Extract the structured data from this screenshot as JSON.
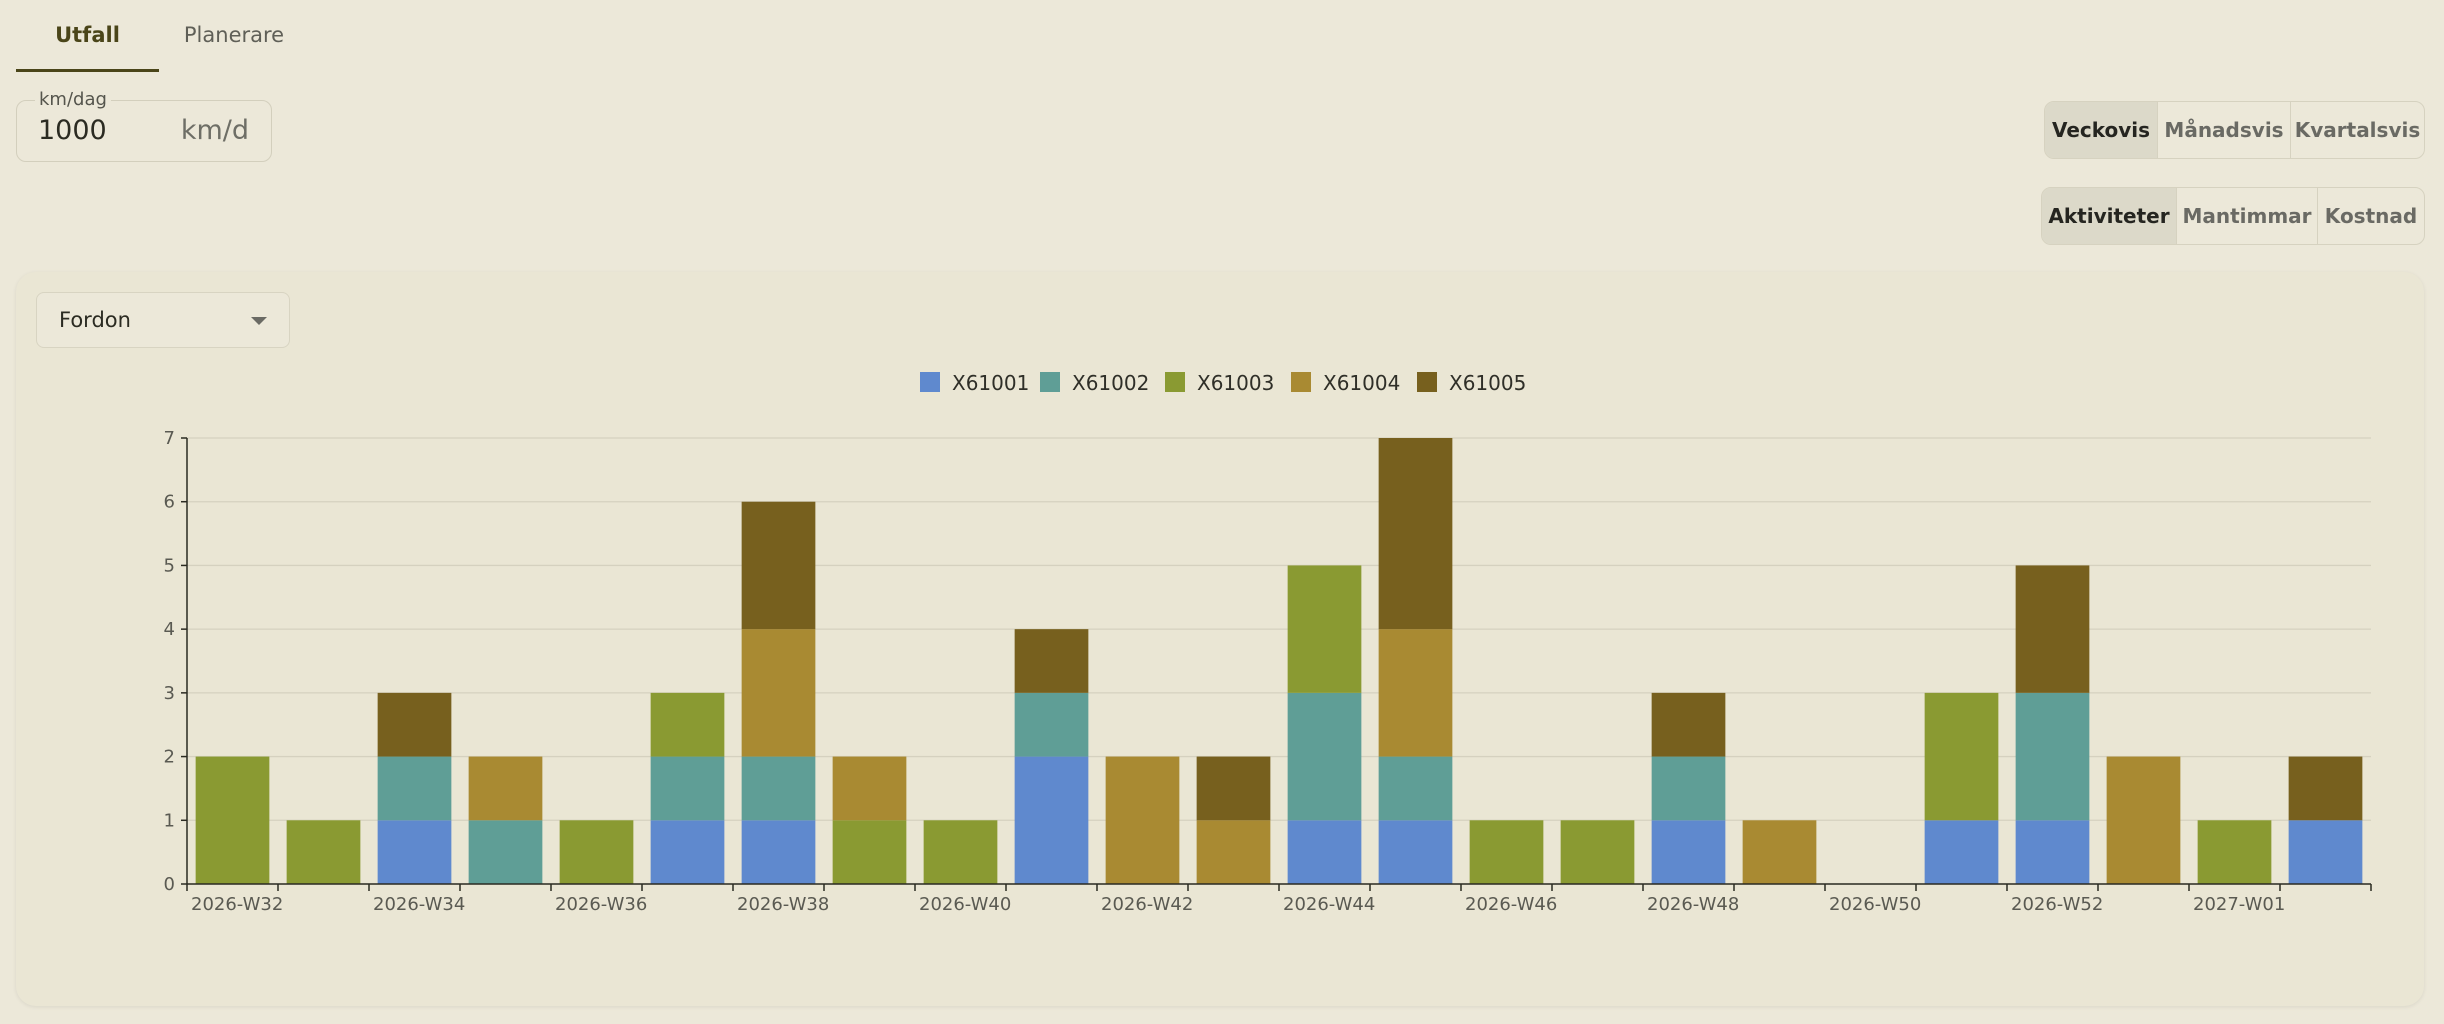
{
  "tabs": [
    {
      "label": "Utfall",
      "active": true
    },
    {
      "label": "Planerare",
      "active": false
    }
  ],
  "km_input": {
    "label": "km/dag",
    "value": "1000",
    "unit": "km/d"
  },
  "period_buttons": [
    {
      "label": "Veckovis",
      "active": true
    },
    {
      "label": "Månadsvis",
      "active": false
    },
    {
      "label": "Kvartalsvis",
      "active": false
    }
  ],
  "metric_buttons": [
    {
      "label": "Aktiviteter",
      "active": true
    },
    {
      "label": "Mantimmar",
      "active": false
    },
    {
      "label": "Kostnad",
      "active": false
    }
  ],
  "group_select": {
    "value": "Fordon"
  },
  "chart_data": {
    "type": "bar",
    "stacked": true,
    "categories": [
      "2026-W32",
      "2026-W33",
      "2026-W34",
      "2026-W35",
      "2026-W36",
      "2026-W37",
      "2026-W38",
      "2026-W39",
      "2026-W40",
      "2026-W41",
      "2026-W42",
      "2026-W43",
      "2026-W44",
      "2026-W45",
      "2026-W46",
      "2026-W47",
      "2026-W48",
      "2026-W49",
      "2026-W50",
      "2026-W51",
      "2026-W52",
      "2026-W53",
      "2027-W01",
      "2027-W02"
    ],
    "tick_labels": [
      "2026-W32",
      "",
      "2026-W34",
      "",
      "2026-W36",
      "",
      "2026-W38",
      "",
      "2026-W40",
      "",
      "2026-W42",
      "",
      "2026-W44",
      "",
      "2026-W46",
      "",
      "2026-W48",
      "",
      "2026-W50",
      "",
      "2026-W52",
      "",
      "2027-W01",
      ""
    ],
    "series": [
      {
        "name": "X61001",
        "color": "#5f89ce",
        "values": [
          0,
          0,
          1,
          0,
          0,
          1,
          1,
          0,
          0,
          2,
          0,
          0,
          1,
          1,
          0,
          0,
          1,
          0,
          0,
          1,
          1,
          0,
          0,
          1
        ]
      },
      {
        "name": "X61002",
        "color": "#5f9e96",
        "values": [
          0,
          0,
          1,
          1,
          0,
          1,
          1,
          0,
          0,
          1,
          0,
          0,
          2,
          1,
          0,
          0,
          1,
          0,
          0,
          0,
          2,
          0,
          0,
          0
        ]
      },
      {
        "name": "X61003",
        "color": "#8a9a32",
        "values": [
          2,
          1,
          0,
          0,
          1,
          1,
          0,
          1,
          1,
          0,
          0,
          0,
          2,
          0,
          1,
          1,
          0,
          0,
          0,
          2,
          0,
          0,
          1,
          0
        ]
      },
      {
        "name": "X61004",
        "color": "#a98a32",
        "values": [
          0,
          0,
          0,
          1,
          0,
          0,
          2,
          1,
          0,
          0,
          2,
          1,
          0,
          2,
          0,
          0,
          0,
          1,
          0,
          0,
          0,
          2,
          0,
          0
        ]
      },
      {
        "name": "X61005",
        "color": "#77601e",
        "values": [
          0,
          0,
          1,
          0,
          0,
          0,
          2,
          0,
          0,
          1,
          0,
          1,
          0,
          3,
          0,
          0,
          1,
          0,
          0,
          0,
          2,
          0,
          0,
          1
        ]
      }
    ],
    "y_ticks": [
      0,
      1,
      2,
      3,
      4,
      5,
      6,
      7
    ],
    "ylim": [
      0,
      7
    ],
    "grid": true,
    "legend_position": "top-center"
  }
}
